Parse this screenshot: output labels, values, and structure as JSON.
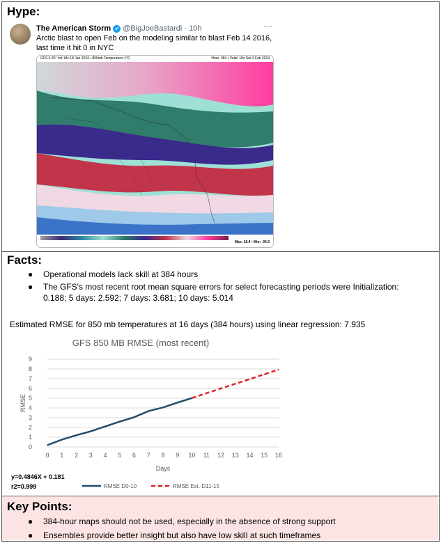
{
  "sections": {
    "hype": "Hype:",
    "facts": "Facts:",
    "key_points": "Key Points:"
  },
  "tweet": {
    "name": "The American Storm",
    "verified_glyph": "✓",
    "handle_time": "@BigJoeBastardi · 10h",
    "more": "···",
    "text": "Arctic blast to open Feb on the modeling similar to blast Feb 14 2016, last time it hit 0 in NYC",
    "map_title": "GFS 0.25° Init 18z 18 Jan 2024 • 850mb Temperature (°C)",
    "map_valid": "Hour: 384 • Valid: 18z Sat 3 Feb 2024",
    "map_maxmin": "Max: 16.4 • Min: -34.3"
  },
  "facts": [
    "Operational models lack skill at 384 hours",
    "The GFS's most recent root mean square errors for select forecasting periods were Initialization: 0.188; 5 days: 2.592; 7 days: 3.681; 10 days: 5.014"
  ],
  "rmse_note": "Estimated RMSE for 850 mb temperatures at 16 days (384 hours) using linear regression: 7.935",
  "colors": {
    "observed": "#1f4e6b",
    "estimate": "#e02020",
    "grid": "#d9d9d9",
    "key_points_bg": "#fce4e4"
  },
  "chart_data": {
    "type": "line",
    "title": "GFS 850 MB RMSE (most recent)",
    "xlabel": "Days",
    "ylabel": "RMSE",
    "x_ticks": [
      0,
      1,
      2,
      3,
      4,
      5,
      6,
      7,
      8,
      9,
      10,
      11,
      12,
      13,
      14,
      15,
      16
    ],
    "y_ticks": [
      0,
      1,
      2,
      3,
      4,
      5,
      6,
      7,
      8,
      9
    ],
    "xlim": [
      0,
      16
    ],
    "ylim": [
      0,
      9
    ],
    "grid": true,
    "legend_position": "bottom",
    "series": [
      {
        "name": "RMSE D0-10",
        "style": "solid",
        "x": [
          0,
          1,
          2,
          3,
          4,
          5,
          6,
          7,
          8,
          9,
          10
        ],
        "y": [
          0.188,
          0.75,
          1.2,
          1.6,
          2.1,
          2.592,
          3.05,
          3.681,
          4.05,
          4.55,
          5.014
        ]
      },
      {
        "name": "RMSE Est. D11-15",
        "style": "dashed",
        "x": [
          10,
          11,
          12,
          13,
          14,
          15,
          16
        ],
        "y": [
          5.026,
          5.51,
          5.996,
          6.48,
          6.965,
          7.45,
          7.935
        ]
      }
    ],
    "equation": "y=0.4846X + 0.181",
    "r2": "r2=0.999"
  },
  "key_points": [
    "384-hour maps should not be used, especially in the absence of strong support",
    "Ensembles provide better insight but also have low skill at such timeframes"
  ]
}
